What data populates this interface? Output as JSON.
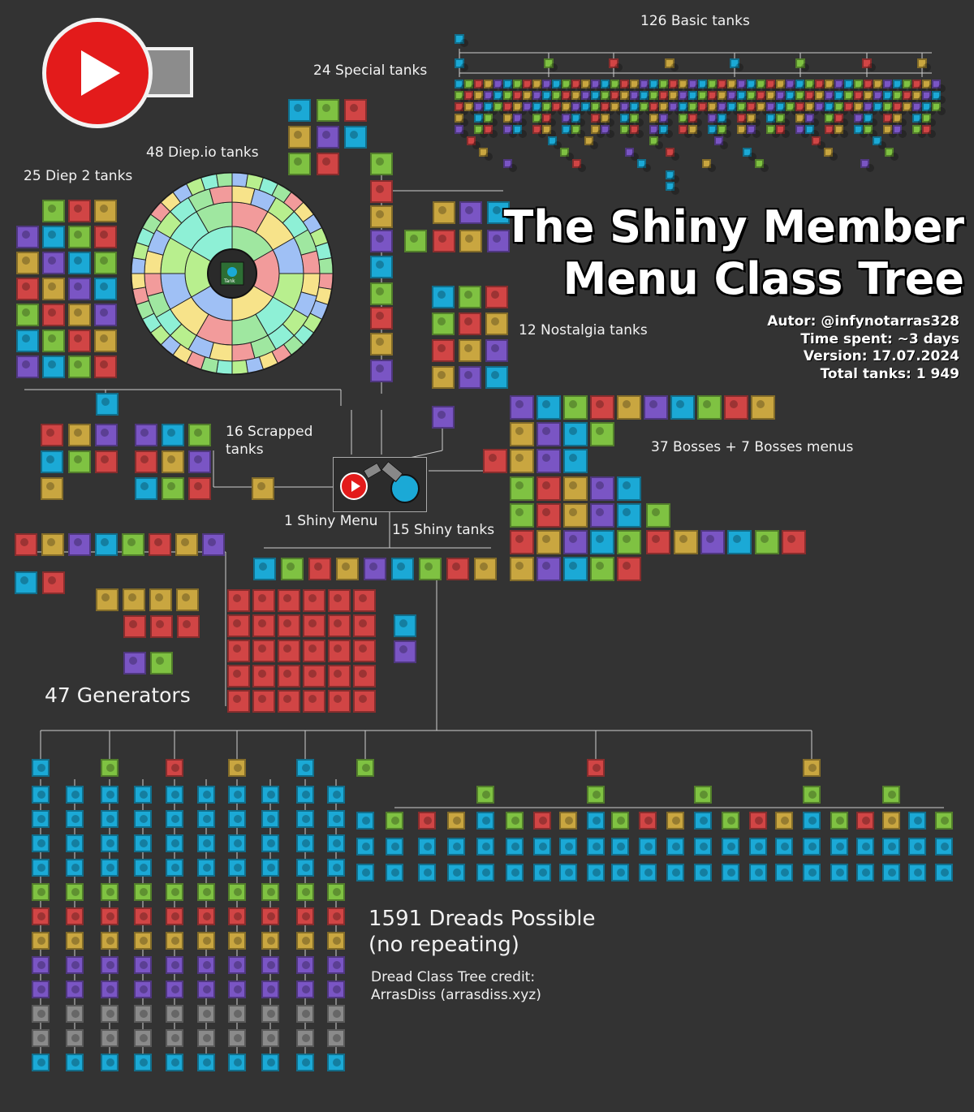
{
  "title_line1": "The Shiny Member",
  "title_line2": "Menu Class Tree",
  "info": {
    "author": "Autor: @infynotarras328",
    "time_spent": "Time spent: ~3 days",
    "version": "Version: 17.07.2024",
    "total": "Total tanks: 1 949"
  },
  "sections": {
    "basic": "126 Basic tanks",
    "special": "24 Special tanks",
    "diepio": "48 Diep.io tanks",
    "diep2": "25 Diep 2 tanks",
    "nostalgia": "12 Nostalgia tanks",
    "scrapped_1": "16 Scrapped",
    "scrapped_2": "tanks",
    "bosses": "37 Bosses + 7 Bosses menus",
    "shiny_menu": "1 Shiny Menu",
    "shiny_tanks": "15 Shiny tanks",
    "generators": "47 Generators",
    "dreads_1": "1591 Dreads Possible",
    "dreads_2": "(no repeating)"
  },
  "credit": {
    "line1": "Dread Class Tree credit:",
    "line2": "ArrasDiss (arrasdiss.xyz)"
  },
  "center_tank": "Tank",
  "colors": {
    "background": "#333333",
    "cyan": "#1ba9d6",
    "green": "#7fc242",
    "red": "#d14545",
    "yellow": "#c9a640",
    "purple": "#7a55c4",
    "gray": "#8a8a8a",
    "logo_red": "#e31b1b"
  }
}
